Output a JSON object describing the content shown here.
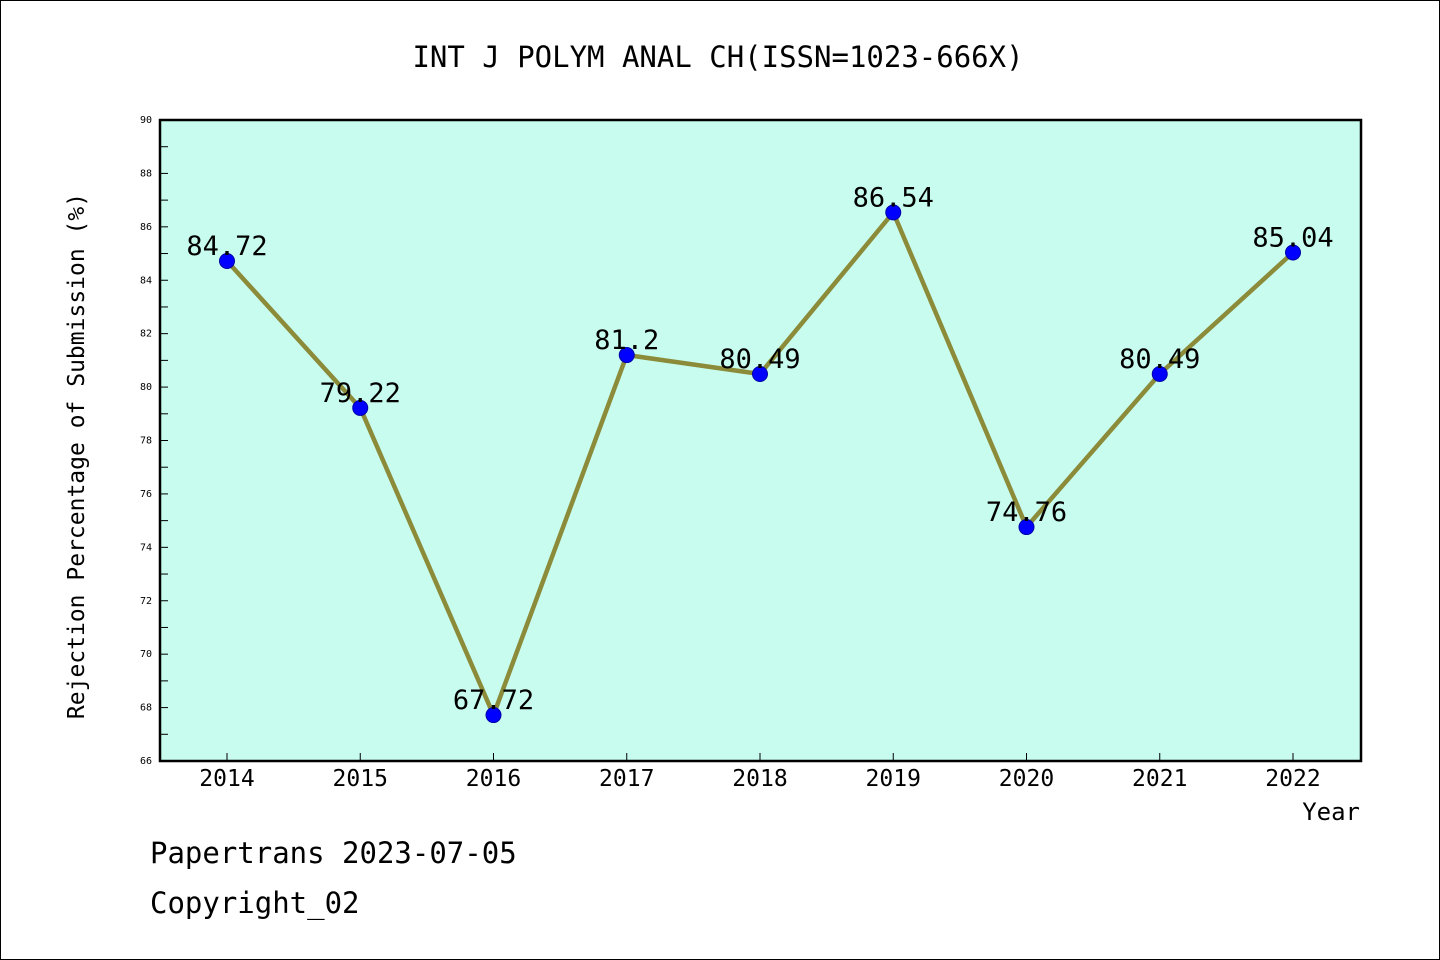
{
  "chart_data": {
    "type": "line",
    "title": "INT J POLYM ANAL CH(ISSN=1023-666X)",
    "xlabel": "Year",
    "ylabel": "Rejection Percentage of Submission (%)",
    "categories": [
      "2014",
      "2015",
      "2016",
      "2017",
      "2018",
      "2019",
      "2020",
      "2021",
      "2022"
    ],
    "series": [
      {
        "values": [
          84.72,
          79.22,
          67.72,
          81.2,
          80.49,
          86.54,
          74.76,
          80.49,
          85.04
        ]
      }
    ],
    "data_labels": [
      "84.72",
      "79.22",
      "67.72",
      "81.2",
      "80.49",
      "86.54",
      "74.76",
      "80.49",
      "85.04"
    ],
    "ylim": [
      66,
      90
    ],
    "yticks": [
      66,
      68,
      70,
      72,
      74,
      76,
      78,
      80,
      82,
      84,
      86,
      88,
      90
    ],
    "grid": false,
    "colors": {
      "plot_background": "#c8fcee",
      "line": "#8b8b3a",
      "marker": "#0000ff"
    }
  },
  "footer": {
    "line1": "Papertrans 2023-07-05",
    "line2": "Copyright_02"
  }
}
